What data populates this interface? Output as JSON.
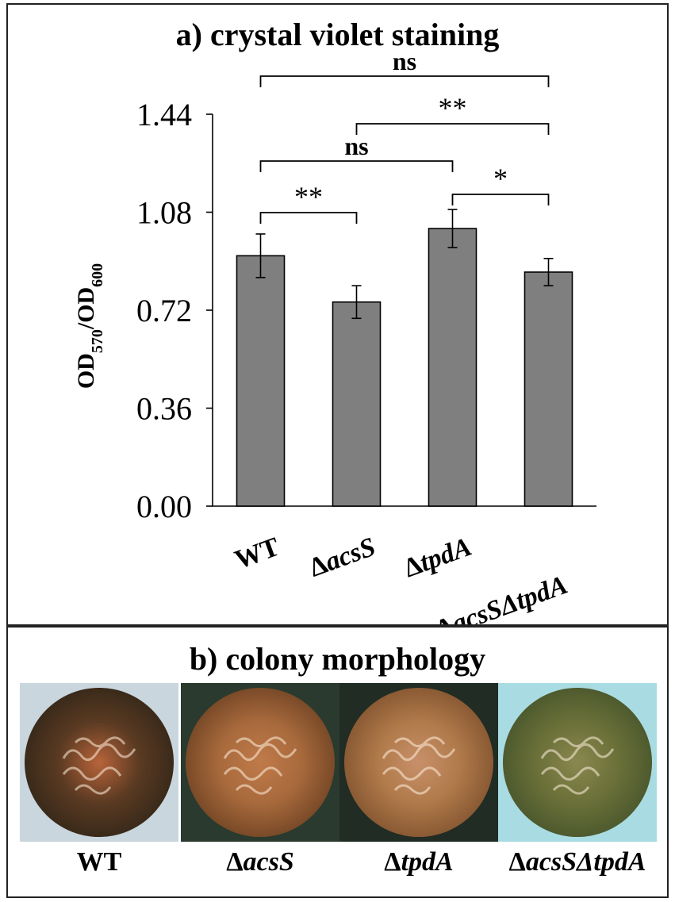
{
  "panel_a": {
    "title": "a) crystal violet staining"
  },
  "panel_b": {
    "title": "b) colony morphology",
    "colonies": [
      {
        "prefix": "",
        "name": "WT",
        "italic": false,
        "colors": {
          "bg": "#6e6a5c",
          "rim": "#3a2a1a",
          "outer": "#5a3a22",
          "inner": "#b8643a",
          "plate": "#c9d6dd"
        }
      },
      {
        "prefix": "Δ",
        "name": "acsS",
        "italic": true,
        "colors": {
          "bg": "#3a4a3a",
          "rim": "#7a4a28",
          "outer": "#a86a3c",
          "inner": "#c07a4a",
          "plate": "#2a3a2e"
        }
      },
      {
        "prefix": "Δ",
        "name": "tpdA",
        "italic": true,
        "colors": {
          "bg": "#2e3a30",
          "rim": "#8a5a34",
          "outer": "#b07a4a",
          "inner": "#c8906a",
          "plate": "#202c24"
        }
      },
      {
        "prefix": "Δ",
        "name": "acsSΔtpdA",
        "italic": true,
        "colors": {
          "bg": "#7ec8d0",
          "rim": "#4e5a2e",
          "outer": "#6a7038",
          "inner": "#8a8850",
          "plate": "#a8dce2"
        }
      }
    ]
  },
  "chart_data": {
    "type": "bar",
    "title": "a) crystal violet staining",
    "ylabel": "OD570/OD600",
    "ylabel_parts": {
      "a": "OD",
      "a_sub": "570",
      "b": "/OD",
      "b_sub": "600"
    },
    "ylim": [
      0,
      1.44
    ],
    "yticks": [
      "0.00",
      "0.36",
      "0.72",
      "1.08",
      "1.44"
    ],
    "categories": [
      {
        "prefix": "",
        "name": "WT",
        "italic": false
      },
      {
        "prefix": "Δ",
        "name": "acsS",
        "italic": true
      },
      {
        "prefix": "Δ",
        "name": "tpdA",
        "italic": true
      },
      {
        "prefix": "Δ",
        "name": "acsSΔtpdA",
        "italic": true
      }
    ],
    "values": [
      0.92,
      0.75,
      1.02,
      0.86
    ],
    "errors": [
      0.08,
      0.06,
      0.07,
      0.05
    ],
    "bar_color": "#7f7f7f",
    "significance": [
      {
        "from": 0,
        "to": 3,
        "label": "ns"
      },
      {
        "from": 1,
        "to": 3,
        "label": "**"
      },
      {
        "from": 0,
        "to": 2,
        "label": "ns"
      },
      {
        "from": 2,
        "to": 3,
        "label": "*"
      },
      {
        "from": 0,
        "to": 1,
        "label": "**"
      }
    ]
  }
}
